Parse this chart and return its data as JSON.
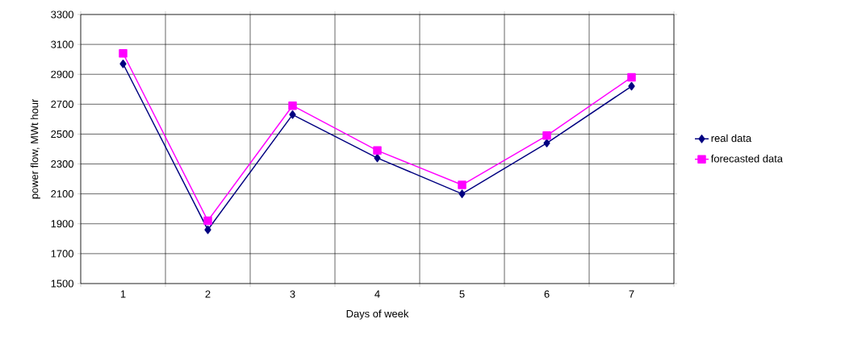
{
  "chart_data": {
    "type": "line",
    "xlabel": "Days of week",
    "ylabel": "power flow, MWt hour",
    "categories": [
      "1",
      "2",
      "3",
      "4",
      "5",
      "6",
      "7"
    ],
    "series": [
      {
        "name": "real data",
        "color": "#000080",
        "marker": "diamond",
        "values": [
          2970,
          1860,
          2630,
          2340,
          2100,
          2440,
          2820
        ]
      },
      {
        "name": "forecasted data",
        "color": "#ff00ff",
        "marker": "square",
        "values": [
          3040,
          1920,
          2690,
          2390,
          2160,
          2490,
          2880
        ]
      }
    ],
    "ylim": [
      1500,
      3300
    ],
    "yticks": [
      1500,
      1700,
      1900,
      2100,
      2300,
      2500,
      2700,
      2900,
      3100,
      3300
    ],
    "grid": true,
    "legend": "right"
  }
}
